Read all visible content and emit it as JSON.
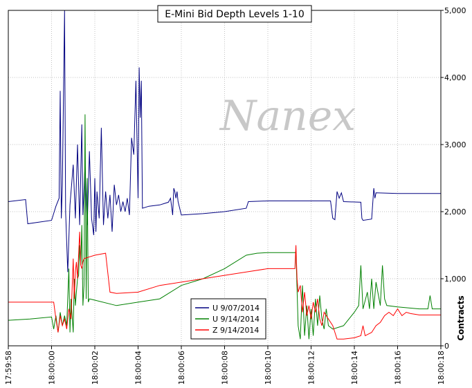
{
  "chart_data": {
    "type": "line",
    "title": "E-Mini Bid Depth Levels 1-10",
    "watermark": "Nanex",
    "ylabel": "Contracts",
    "ylim": [
      0,
      5000
    ],
    "y_ticks": [
      "0",
      "1,000",
      "2,000",
      "3,000",
      "4,000",
      "5,000"
    ],
    "x_ticks": [
      "17:59:58",
      "18:00:00",
      "18:00:02",
      "18:00:04",
      "18:00:06",
      "18:00:08",
      "18:00:10",
      "18:00:12",
      "18:00:14",
      "18:00:16",
      "18:00:18"
    ],
    "xlim_seconds": [
      0,
      20
    ],
    "grid": true,
    "legend_placement": "bottom-center",
    "series": [
      {
        "name": "U 9/07/2014",
        "color": "#000080",
        "points": [
          [
            0,
            2150
          ],
          [
            0.8,
            2180
          ],
          [
            0.9,
            1820
          ],
          [
            2.0,
            1870
          ],
          [
            2.2,
            2080
          ],
          [
            2.35,
            2200
          ],
          [
            2.4,
            3800
          ],
          [
            2.45,
            1900
          ],
          [
            2.5,
            2400
          ],
          [
            2.6,
            5000
          ],
          [
            2.65,
            2000
          ],
          [
            2.75,
            1100
          ],
          [
            2.85,
            2100
          ],
          [
            3.0,
            2700
          ],
          [
            3.1,
            1900
          ],
          [
            3.2,
            3000
          ],
          [
            3.3,
            1800
          ],
          [
            3.4,
            3300
          ],
          [
            3.45,
            1950
          ],
          [
            3.55,
            2700
          ],
          [
            3.65,
            1800
          ],
          [
            3.75,
            2900
          ],
          [
            3.85,
            1900
          ],
          [
            3.95,
            1650
          ],
          [
            4.0,
            2500
          ],
          [
            4.05,
            1700
          ],
          [
            4.1,
            2300
          ],
          [
            4.2,
            1900
          ],
          [
            4.3,
            3250
          ],
          [
            4.4,
            1800
          ],
          [
            4.5,
            2300
          ],
          [
            4.6,
            1900
          ],
          [
            4.7,
            2250
          ],
          [
            4.8,
            1700
          ],
          [
            4.9,
            2400
          ],
          [
            5.0,
            2100
          ],
          [
            5.1,
            2250
          ],
          [
            5.2,
            2000
          ],
          [
            5.3,
            2150
          ],
          [
            5.4,
            2000
          ],
          [
            5.5,
            2200
          ],
          [
            5.6,
            1950
          ],
          [
            5.7,
            3100
          ],
          [
            5.8,
            2850
          ],
          [
            5.9,
            3950
          ],
          [
            6.0,
            2200
          ],
          [
            6.05,
            4150
          ],
          [
            6.1,
            3400
          ],
          [
            6.15,
            3950
          ],
          [
            6.2,
            2050
          ],
          [
            6.5,
            2080
          ],
          [
            7.0,
            2100
          ],
          [
            7.2,
            2120
          ],
          [
            7.4,
            2140
          ],
          [
            7.5,
            2200
          ],
          [
            7.6,
            1950
          ],
          [
            7.65,
            2350
          ],
          [
            7.7,
            2300
          ],
          [
            7.75,
            2200
          ],
          [
            7.8,
            2300
          ],
          [
            7.85,
            2150
          ],
          [
            8.0,
            1950
          ],
          [
            9.0,
            1970
          ],
          [
            10.0,
            2000
          ],
          [
            11.0,
            2050
          ],
          [
            11.1,
            2150
          ],
          [
            12.0,
            2160
          ],
          [
            13.0,
            2160
          ],
          [
            14.0,
            2160
          ],
          [
            14.9,
            2160
          ],
          [
            15.0,
            1900
          ],
          [
            15.1,
            1880
          ],
          [
            15.2,
            2300
          ],
          [
            15.3,
            2200
          ],
          [
            15.4,
            2280
          ],
          [
            15.5,
            2150
          ],
          [
            16.3,
            2140
          ],
          [
            16.35,
            1900
          ],
          [
            16.4,
            1870
          ],
          [
            16.8,
            1890
          ],
          [
            16.9,
            2350
          ],
          [
            16.95,
            2200
          ],
          [
            17.0,
            2280
          ],
          [
            18.0,
            2270
          ],
          [
            20.0,
            2270
          ]
        ]
      },
      {
        "name": "U 9/14/2014",
        "color": "#008000",
        "points": [
          [
            0,
            380
          ],
          [
            1.0,
            400
          ],
          [
            2.0,
            430
          ],
          [
            2.1,
            250
          ],
          [
            2.2,
            450
          ],
          [
            2.3,
            200
          ],
          [
            2.4,
            500
          ],
          [
            2.5,
            300
          ],
          [
            2.6,
            450
          ],
          [
            2.7,
            300
          ],
          [
            2.8,
            1150
          ],
          [
            2.85,
            200
          ],
          [
            2.9,
            700
          ],
          [
            2.95,
            450
          ],
          [
            3.0,
            200
          ],
          [
            3.05,
            1000
          ],
          [
            3.1,
            600
          ],
          [
            3.15,
            800
          ],
          [
            3.2,
            1000
          ],
          [
            3.25,
            1050
          ],
          [
            3.3,
            1500
          ],
          [
            3.35,
            1200
          ],
          [
            3.4,
            1800
          ],
          [
            3.45,
            600
          ],
          [
            3.5,
            900
          ],
          [
            3.55,
            3450
          ],
          [
            3.6,
            700
          ],
          [
            3.65,
            2500
          ],
          [
            3.7,
            650
          ],
          [
            3.75,
            700
          ],
          [
            4.0,
            680
          ],
          [
            5.0,
            600
          ],
          [
            6.0,
            650
          ],
          [
            7.0,
            700
          ],
          [
            8.0,
            900
          ],
          [
            9.0,
            1000
          ],
          [
            10.0,
            1150
          ],
          [
            11.0,
            1350
          ],
          [
            11.5,
            1380
          ],
          [
            12.0,
            1390
          ],
          [
            13.0,
            1390
          ],
          [
            13.3,
            1390
          ],
          [
            13.4,
            300
          ],
          [
            13.5,
            100
          ],
          [
            13.6,
            900
          ],
          [
            13.7,
            150
          ],
          [
            13.8,
            600
          ],
          [
            13.9,
            100
          ],
          [
            14.0,
            550
          ],
          [
            14.1,
            150
          ],
          [
            14.2,
            700
          ],
          [
            14.3,
            300
          ],
          [
            14.4,
            750
          ],
          [
            14.5,
            400
          ],
          [
            14.6,
            250
          ],
          [
            14.7,
            550
          ],
          [
            14.8,
            300
          ],
          [
            15.0,
            250
          ],
          [
            15.5,
            300
          ],
          [
            16.0,
            500
          ],
          [
            16.2,
            600
          ],
          [
            16.3,
            1200
          ],
          [
            16.4,
            550
          ],
          [
            16.6,
            800
          ],
          [
            16.7,
            550
          ],
          [
            16.8,
            1000
          ],
          [
            16.9,
            550
          ],
          [
            17.0,
            950
          ],
          [
            17.2,
            600
          ],
          [
            17.3,
            1200
          ],
          [
            17.4,
            700
          ],
          [
            17.5,
            600
          ],
          [
            18.0,
            580
          ],
          [
            19.0,
            550
          ],
          [
            19.4,
            550
          ],
          [
            19.5,
            750
          ],
          [
            19.6,
            550
          ],
          [
            20.0,
            550
          ]
        ]
      },
      {
        "name": "Z 9/14/2014",
        "color": "#ff0000",
        "points": [
          [
            0,
            650
          ],
          [
            2.1,
            650
          ],
          [
            2.2,
            400
          ],
          [
            2.3,
            200
          ],
          [
            2.4,
            450
          ],
          [
            2.5,
            300
          ],
          [
            2.6,
            400
          ],
          [
            2.7,
            250
          ],
          [
            2.8,
            550
          ],
          [
            2.9,
            400
          ],
          [
            3.0,
            1300
          ],
          [
            3.05,
            700
          ],
          [
            3.1,
            1100
          ],
          [
            3.15,
            1250
          ],
          [
            3.2,
            1000
          ],
          [
            3.3,
            1700
          ],
          [
            3.35,
            1200
          ],
          [
            3.4,
            1150
          ],
          [
            3.45,
            1250
          ],
          [
            3.5,
            1300
          ],
          [
            4.0,
            1350
          ],
          [
            4.5,
            1380
          ],
          [
            4.7,
            800
          ],
          [
            5.0,
            780
          ],
          [
            6.0,
            800
          ],
          [
            7.0,
            900
          ],
          [
            8.0,
            950
          ],
          [
            9.0,
            1000
          ],
          [
            10.0,
            1050
          ],
          [
            11.0,
            1100
          ],
          [
            12.0,
            1150
          ],
          [
            13.0,
            1150
          ],
          [
            13.25,
            1150
          ],
          [
            13.3,
            1500
          ],
          [
            13.35,
            1000
          ],
          [
            13.4,
            800
          ],
          [
            13.5,
            900
          ],
          [
            13.6,
            500
          ],
          [
            13.7,
            800
          ],
          [
            13.8,
            450
          ],
          [
            13.9,
            600
          ],
          [
            14.0,
            400
          ],
          [
            14.1,
            650
          ],
          [
            14.2,
            500
          ],
          [
            14.3,
            700
          ],
          [
            14.4,
            400
          ],
          [
            14.5,
            300
          ],
          [
            14.6,
            500
          ],
          [
            14.8,
            400
          ],
          [
            15.0,
            300
          ],
          [
            15.2,
            100
          ],
          [
            15.5,
            100
          ],
          [
            16.0,
            120
          ],
          [
            16.3,
            150
          ],
          [
            16.4,
            300
          ],
          [
            16.5,
            150
          ],
          [
            16.8,
            200
          ],
          [
            17.0,
            300
          ],
          [
            17.2,
            350
          ],
          [
            17.4,
            450
          ],
          [
            17.6,
            500
          ],
          [
            17.8,
            450
          ],
          [
            18.0,
            550
          ],
          [
            18.2,
            450
          ],
          [
            18.4,
            500
          ],
          [
            18.6,
            480
          ],
          [
            19.0,
            460
          ],
          [
            20.0,
            460
          ]
        ]
      }
    ]
  }
}
